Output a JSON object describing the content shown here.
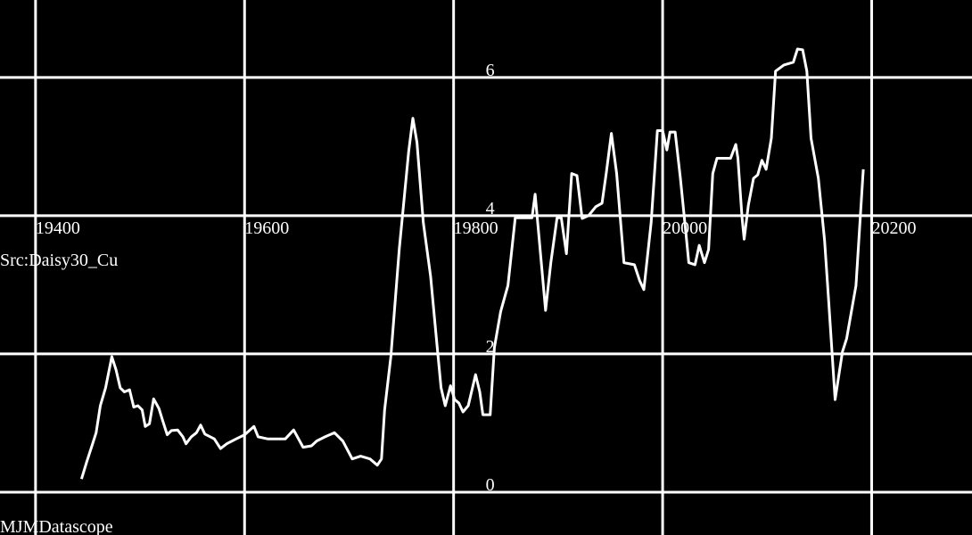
{
  "chart_data": {
    "type": "line",
    "annotations": [
      "Src:Daisy30_Cu",
      "MJMDatascope"
    ],
    "x": [
      19444,
      19449,
      19454,
      19458,
      19462,
      19467,
      19473,
      19477,
      19481,
      19485,
      19490,
      19494,
      19498,
      19502,
      19505,
      19509,
      19513,
      19518,
      19522,
      19526,
      19530,
      19536,
      19541,
      19544,
      19549,
      19554,
      19558,
      19562,
      19571,
      19577,
      19583,
      19592,
      19600,
      19609,
      19613,
      19622,
      19639,
      19647,
      19656,
      19664,
      19669,
      19677,
      19686,
      19694,
      19703,
      19711,
      19720,
      19727,
      19731,
      19734,
      19740,
      19748,
      19757,
      19761,
      19765,
      19771,
      19778,
      19784,
      19788,
      19792,
      19797,
      19801,
      19805,
      19809,
      19814,
      19821,
      19825,
      19828,
      19835,
      19839,
      19845,
      19852,
      19859,
      19875,
      19878,
      19882,
      19888,
      19893,
      19899,
      19903,
      19908,
      19913,
      19918,
      19923,
      19929,
      19936,
      19942,
      19946,
      19951,
      19956,
      19963,
      19973,
      19978,
      19982,
      19989,
      19995,
      20000,
      20004,
      20007,
      20012,
      20017,
      20023,
      20025,
      20031,
      20035,
      20040,
      20044,
      20048,
      20052,
      20065,
      20070,
      20072,
      20076,
      20078,
      20082,
      20087,
      20091,
      20095,
      20099,
      20104,
      20108,
      20116,
      20125,
      20129,
      20134,
      20138,
      20142,
      20149,
      20155,
      20159,
      20165,
      20172,
      20176,
      20185,
      20192
    ],
    "values": [
      0.19,
      0.44,
      0.67,
      0.86,
      1.25,
      1.51,
      1.96,
      1.77,
      1.51,
      1.45,
      1.48,
      1.23,
      1.25,
      1.19,
      0.95,
      0.99,
      1.35,
      1.21,
      1.02,
      0.83,
      0.89,
      0.9,
      0.8,
      0.7,
      0.8,
      0.86,
      0.97,
      0.84,
      0.77,
      0.63,
      0.7,
      0.77,
      0.83,
      0.95,
      0.8,
      0.77,
      0.77,
      0.9,
      0.65,
      0.67,
      0.74,
      0.8,
      0.86,
      0.74,
      0.48,
      0.52,
      0.48,
      0.39,
      0.48,
      1.19,
      1.96,
      3.51,
      4.93,
      5.41,
      5.06,
      3.9,
      3.12,
      2.15,
      1.51,
      1.25,
      1.54,
      1.34,
      1.29,
      1.16,
      1.25,
      1.7,
      1.45,
      1.12,
      1.12,
      2.09,
      2.61,
      2.99,
      3.97,
      3.97,
      4.31,
      3.64,
      2.63,
      3.32,
      3.97,
      3.97,
      3.45,
      4.61,
      4.58,
      3.96,
      4.0,
      4.13,
      4.18,
      4.61,
      5.19,
      4.61,
      3.32,
      3.29,
      3.06,
      2.93,
      3.9,
      5.23,
      5.23,
      4.95,
      5.21,
      5.21,
      4.54,
      3.64,
      3.32,
      3.29,
      3.57,
      3.32,
      3.51,
      4.61,
      4.83,
      4.83,
      5.03,
      4.83,
      3.96,
      3.66,
      4.15,
      4.54,
      4.59,
      4.8,
      4.67,
      5.12,
      6.09,
      6.18,
      6.22,
      6.41,
      6.4,
      6.09,
      5.12,
      4.54,
      3.64,
      2.74,
      1.34,
      2.03,
      2.22,
      2.99,
      4.67
    ],
    "color": "#ffffff",
    "xlim": [
      19366,
      20296
    ],
    "xticks": [
      19400,
      19600,
      19800,
      20000,
      20200
    ],
    "ylim": [
      -0.62,
      7.12
    ],
    "yticks": [
      0,
      2,
      4,
      6
    ],
    "grid": true
  }
}
